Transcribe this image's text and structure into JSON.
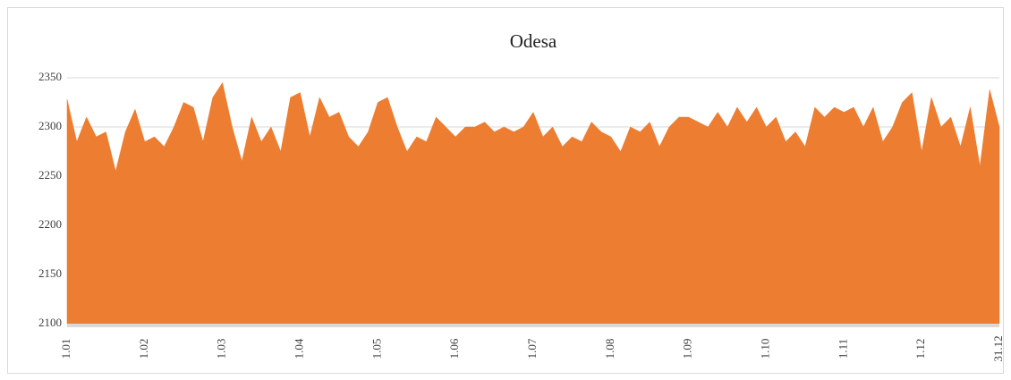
{
  "chart_data": {
    "type": "area",
    "title": "Odesa",
    "color": "#ed7d31",
    "grid": true,
    "categories": [
      "1.01",
      null,
      null,
      null,
      null,
      null,
      null,
      null,
      "1.02",
      null,
      null,
      null,
      null,
      null,
      null,
      null,
      "1.03",
      null,
      null,
      null,
      null,
      null,
      null,
      null,
      "1.04",
      null,
      null,
      null,
      null,
      null,
      null,
      null,
      "1.05",
      null,
      null,
      null,
      null,
      null,
      null,
      null,
      "1.06",
      null,
      null,
      null,
      null,
      null,
      null,
      null,
      "1.07",
      null,
      null,
      null,
      null,
      null,
      null,
      null,
      "1.08",
      null,
      null,
      null,
      null,
      null,
      null,
      null,
      "1.09",
      null,
      null,
      null,
      null,
      null,
      null,
      null,
      "1.10",
      null,
      null,
      null,
      null,
      null,
      null,
      null,
      "1.11",
      null,
      null,
      null,
      null,
      null,
      null,
      null,
      "1.12",
      null,
      null,
      null,
      null,
      null,
      null,
      null,
      "31.12"
    ],
    "values": [
      2328,
      2285,
      2310,
      2290,
      2295,
      2255,
      2295,
      2318,
      2285,
      2290,
      2280,
      2300,
      2325,
      2320,
      2285,
      2330,
      2345,
      2300,
      2265,
      2310,
      2285,
      2300,
      2275,
      2330,
      2335,
      2290,
      2330,
      2310,
      2315,
      2290,
      2280,
      2295,
      2325,
      2330,
      2300,
      2275,
      2290,
      2285,
      2310,
      2300,
      2290,
      2300,
      2300,
      2305,
      2295,
      2300,
      2295,
      2300,
      2315,
      2290,
      2300,
      2280,
      2290,
      2285,
      2305,
      2295,
      2290,
      2275,
      2300,
      2295,
      2305,
      2280,
      2300,
      2310,
      2310,
      2305,
      2300,
      2315,
      2300,
      2320,
      2305,
      2320,
      2300,
      2310,
      2285,
      2295,
      2280,
      2320,
      2310,
      2320,
      2315,
      2320,
      2300,
      2320,
      2285,
      2300,
      2325,
      2335,
      2275,
      2330,
      2300,
      2310,
      2280,
      2320,
      2260,
      2338,
      2300
    ],
    "ylim": [
      2100,
      2350
    ],
    "yticks": [
      2100,
      2150,
      2200,
      2250,
      2300,
      2350
    ]
  }
}
